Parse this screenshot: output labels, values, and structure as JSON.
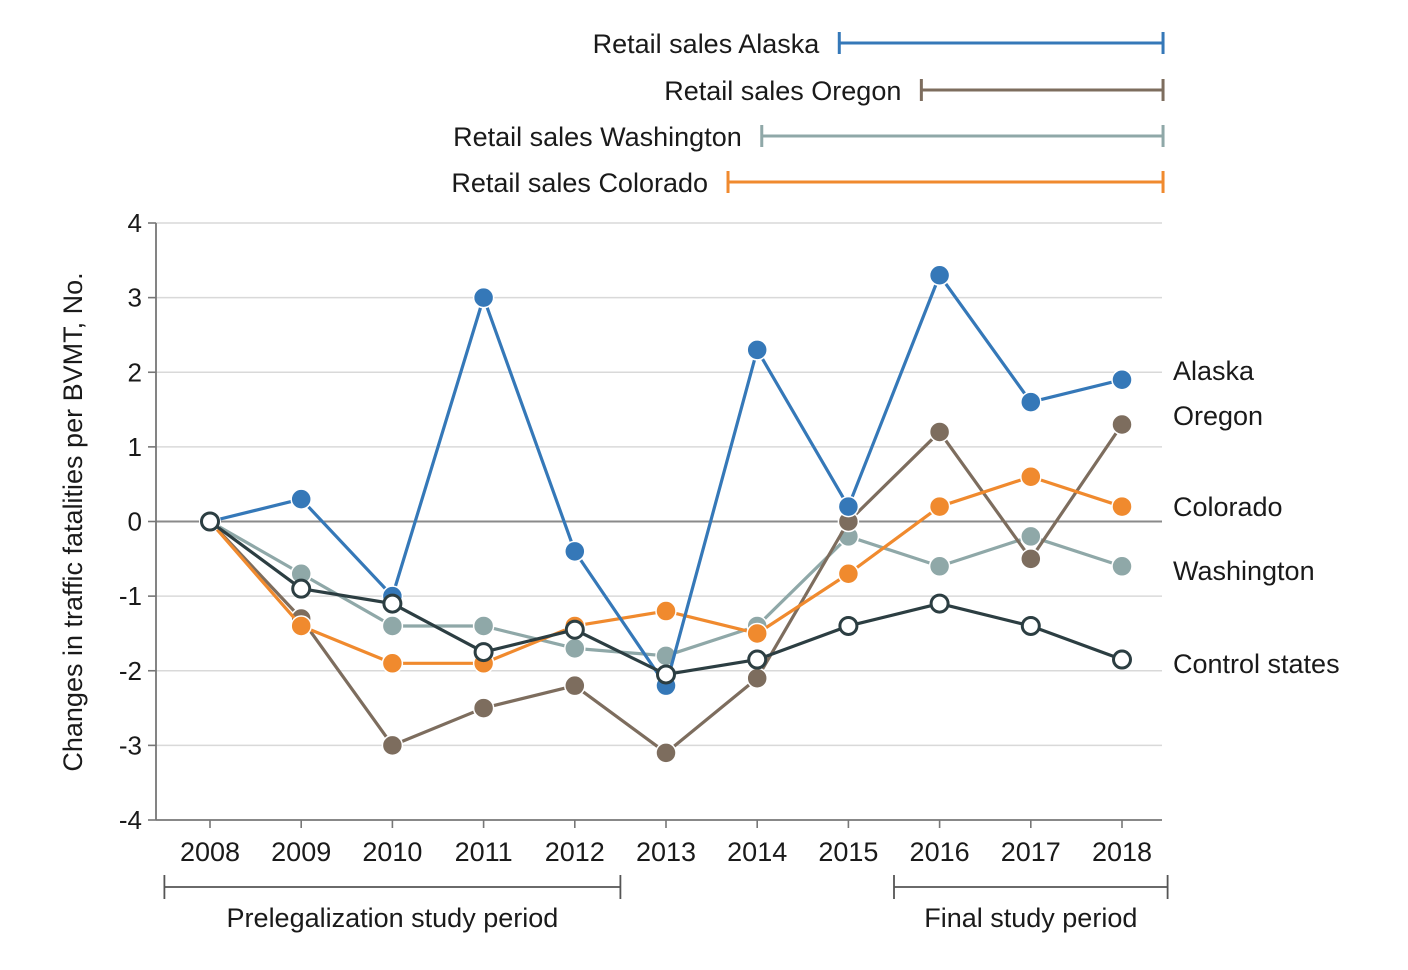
{
  "chart_data": {
    "type": "line",
    "title": "",
    "ylabel": "Changes in traffic fatalities per BVMT, No.",
    "xlabel": "",
    "categories": [
      "2008",
      "2009",
      "2010",
      "2011",
      "2012",
      "2013",
      "2014",
      "2015",
      "2016",
      "2017",
      "2018"
    ],
    "ylim": [
      -4,
      4
    ],
    "yticks": [
      4,
      3,
      2,
      1,
      0,
      -1,
      -2,
      -3,
      -4
    ],
    "ytick_labels": [
      "4",
      "3",
      "2",
      "1",
      "0",
      "-1",
      "-2",
      "-3",
      "-4"
    ],
    "grid": true,
    "legend_placement": "right, at line ends",
    "series": [
      {
        "name": "Alaska",
        "color": "#3578b8",
        "marker": "filled",
        "values": [
          0,
          0.3,
          -1.0,
          3.0,
          -0.4,
          -2.2,
          2.3,
          0.2,
          3.3,
          1.6,
          1.9
        ]
      },
      {
        "name": "Oregon",
        "color": "#7d6d5e",
        "marker": "filled",
        "values": [
          0,
          -1.3,
          -3.0,
          -2.5,
          -2.2,
          -3.1,
          -2.1,
          0.0,
          1.2,
          -0.5,
          1.3
        ]
      },
      {
        "name": "Colorado",
        "color": "#f08a2e",
        "marker": "filled",
        "values": [
          0,
          -1.4,
          -1.9,
          -1.9,
          -1.4,
          -1.2,
          -1.5,
          -0.7,
          0.2,
          0.6,
          0.2
        ]
      },
      {
        "name": "Washington",
        "color": "#8fa8a8",
        "marker": "filled",
        "values": [
          0,
          -0.7,
          -1.4,
          -1.4,
          -1.7,
          -1.8,
          -1.4,
          -0.2,
          -0.6,
          -0.2,
          -0.6
        ]
      },
      {
        "name": "Control states",
        "color": "#2c3e42",
        "marker": "open",
        "values": [
          0,
          -0.9,
          -1.1,
          -1.75,
          -1.45,
          -2.05,
          -1.85,
          -1.4,
          -1.1,
          -1.4,
          -1.85
        ]
      }
    ],
    "retail_sales": [
      {
        "label": "Retail sales Alaska",
        "color": "#3578b8",
        "start_year": 2014.9,
        "end_year": 2018.45
      },
      {
        "label": "Retail sales Oregon",
        "color": "#7d6d5e",
        "start_year": 2015.8,
        "end_year": 2018.45
      },
      {
        "label": "Retail sales Washington",
        "color": "#8fa8a8",
        "start_year": 2014.05,
        "end_year": 2018.45
      },
      {
        "label": "Retail sales Colorado",
        "color": "#f08a2e",
        "start_year": 2013.68,
        "end_year": 2018.45
      }
    ],
    "periods": [
      {
        "label": "Prelegalization study period",
        "start_year": 2007.5,
        "end_year": 2012.5
      },
      {
        "label": "Final study period",
        "start_year": 2015.5,
        "end_year": 2018.5
      }
    ],
    "axis_color": "#777777",
    "grid_color": "#d9d9d9"
  }
}
